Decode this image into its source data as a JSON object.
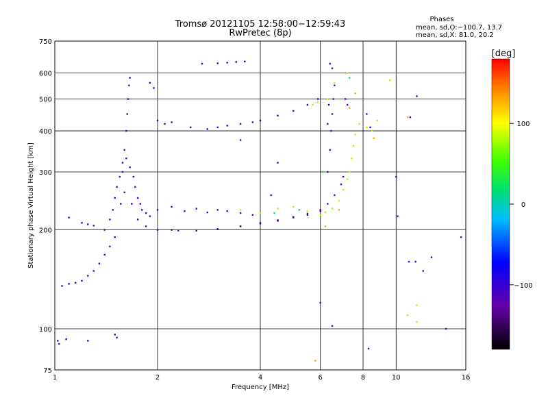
{
  "chart_data": {
    "type": "scatter",
    "title": "Tromsø 20121105 12:58:00−12:59:43",
    "subtitle": "RwPretec (8p)",
    "xlabel": "Frequency [MHz]",
    "ylabel": "Stationary phase Virtual Height [km]",
    "x_scale": "log",
    "y_scale": "log",
    "xlim": [
      1,
      16
    ],
    "ylim": [
      75,
      750
    ],
    "x_ticks": [
      1,
      2,
      4,
      6,
      8,
      10,
      16
    ],
    "x_tick_labels": [
      "1",
      "2",
      "4",
      "6",
      "8",
      "10",
      "16"
    ],
    "y_ticks": [
      75,
      100,
      200,
      300,
      400,
      500,
      600,
      750
    ],
    "y_tick_labels": [
      "75",
      "100",
      "200",
      "300",
      "400",
      "500",
      "600",
      "750"
    ],
    "grid": true,
    "phase_stats": {
      "heading": "Phases",
      "line_o": "mean, sd,O:−100.7, 13.7",
      "line_x": "mean, sd,X:  81.0, 20.2"
    },
    "colorbar": {
      "label": "[deg]",
      "range": [
        -180,
        180
      ],
      "ticks": [
        100,
        0,
        -100
      ],
      "tick_labels": [
        "100",
        "0",
        "−100"
      ]
    },
    "series": [
      {
        "color_phase_deg": -110,
        "points": [
          [
            1.02,
            92
          ],
          [
            1.03,
            90
          ],
          [
            1.08,
            93
          ],
          [
            1.25,
            92
          ],
          [
            1.5,
            96
          ],
          [
            1.52,
            94
          ],
          [
            1.05,
            135
          ],
          [
            1.1,
            137
          ],
          [
            1.15,
            138
          ],
          [
            1.2,
            140
          ],
          [
            1.25,
            145
          ],
          [
            1.3,
            150
          ],
          [
            1.35,
            158
          ],
          [
            1.4,
            168
          ],
          [
            1.45,
            178
          ],
          [
            1.5,
            190
          ],
          [
            1.4,
            200
          ],
          [
            1.45,
            215
          ],
          [
            1.48,
            230
          ],
          [
            1.5,
            250
          ],
          [
            1.52,
            270
          ],
          [
            1.55,
            290
          ],
          [
            1.58,
            320
          ],
          [
            1.6,
            350
          ],
          [
            1.62,
            400
          ],
          [
            1.63,
            450
          ],
          [
            1.64,
            500
          ],
          [
            1.65,
            550
          ],
          [
            1.66,
            580
          ],
          [
            1.56,
            240
          ],
          [
            1.6,
            260
          ],
          [
            1.58,
            300
          ],
          [
            1.62,
            330
          ],
          [
            1.66,
            310
          ],
          [
            1.7,
            290
          ],
          [
            1.72,
            270
          ],
          [
            1.75,
            250
          ],
          [
            1.78,
            240
          ],
          [
            1.8,
            230
          ],
          [
            1.85,
            225
          ],
          [
            1.9,
            220
          ],
          [
            1.1,
            218
          ],
          [
            1.2,
            210
          ],
          [
            1.25,
            208
          ],
          [
            1.3,
            206
          ],
          [
            1.68,
            240
          ],
          [
            1.75,
            215
          ],
          [
            1.85,
            205
          ],
          [
            2.0,
            200
          ],
          [
            2.3,
            199
          ],
          [
            2.6,
            199
          ],
          [
            3.0,
            201
          ],
          [
            3.5,
            205
          ],
          [
            4.0,
            210
          ],
          [
            4.5,
            214
          ],
          [
            5.0,
            219
          ],
          [
            5.5,
            224
          ],
          [
            6.0,
            230
          ],
          [
            6.3,
            240
          ],
          [
            6.6,
            255
          ],
          [
            6.9,
            275
          ],
          [
            7.0,
            290
          ],
          [
            2.0,
            230
          ],
          [
            2.2,
            235
          ],
          [
            2.4,
            228
          ],
          [
            2.6,
            232
          ],
          [
            2.8,
            226
          ],
          [
            3.0,
            230
          ],
          [
            3.2,
            228
          ],
          [
            3.5,
            225
          ],
          [
            3.8,
            222
          ],
          [
            1.9,
            560
          ],
          [
            1.95,
            540
          ],
          [
            2.0,
            430
          ],
          [
            2.1,
            420
          ],
          [
            2.2,
            425
          ],
          [
            2.5,
            410
          ],
          [
            2.8,
            405
          ],
          [
            3.0,
            410
          ],
          [
            3.2,
            415
          ],
          [
            3.5,
            420
          ],
          [
            3.8,
            425
          ],
          [
            4.0,
            430
          ],
          [
            4.5,
            445
          ],
          [
            5.0,
            460
          ],
          [
            5.5,
            480
          ],
          [
            5.9,
            500
          ],
          [
            2.7,
            640
          ],
          [
            3.0,
            642
          ],
          [
            3.2,
            645
          ],
          [
            3.4,
            648
          ],
          [
            3.6,
            650
          ],
          [
            6.3,
            300
          ],
          [
            6.4,
            350
          ],
          [
            6.45,
            400
          ],
          [
            6.5,
            450
          ],
          [
            6.55,
            500
          ],
          [
            6.6,
            550
          ],
          [
            6.5,
            620
          ],
          [
            6.4,
            640
          ],
          [
            6.3,
            420
          ],
          [
            6.35,
            480
          ],
          [
            7.1,
            500
          ],
          [
            7.2,
            480
          ],
          [
            8.2,
            450
          ],
          [
            8.4,
            410
          ],
          [
            6.0,
            120
          ],
          [
            6.5,
            102
          ],
          [
            8.3,
            87
          ],
          [
            10.0,
            290
          ],
          [
            10.1,
            220
          ],
          [
            10.9,
            160
          ],
          [
            11.4,
            160
          ],
          [
            12.0,
            150
          ],
          [
            12.7,
            165
          ],
          [
            14.0,
            100
          ],
          [
            15.5,
            190
          ],
          [
            11.0,
            440
          ],
          [
            11.5,
            510
          ],
          [
            3.5,
            375
          ],
          [
            4.5,
            320
          ],
          [
            4.3,
            255
          ]
        ]
      },
      {
        "color_phase_deg": -140,
        "points": [
          [
            2.2,
            200
          ],
          [
            2.6,
            199
          ],
          [
            3.0,
            201
          ],
          [
            3.5,
            205
          ],
          [
            4.0,
            209
          ],
          [
            4.5,
            213
          ],
          [
            5.0,
            218
          ],
          [
            5.5,
            222
          ],
          [
            6.0,
            228
          ]
        ]
      },
      {
        "color_phase_deg": 80,
        "points": [
          [
            3.5,
            230
          ],
          [
            4.0,
            225
          ],
          [
            4.5,
            232
          ],
          [
            5.0,
            235
          ],
          [
            5.5,
            228
          ],
          [
            6.0,
            222
          ],
          [
            6.2,
            226
          ],
          [
            6.5,
            232
          ],
          [
            6.8,
            245
          ],
          [
            7.0,
            265
          ],
          [
            7.2,
            285
          ],
          [
            7.3,
            300
          ],
          [
            7.4,
            330
          ],
          [
            7.5,
            360
          ],
          [
            7.6,
            390
          ],
          [
            7.8,
            420
          ],
          [
            8.2,
            410
          ],
          [
            8.5,
            400
          ],
          [
            8.8,
            430
          ],
          [
            5.7,
            480
          ],
          [
            5.9,
            490
          ],
          [
            6.3,
            500
          ],
          [
            6.6,
            560
          ],
          [
            7.2,
            600
          ],
          [
            9.6,
            570
          ],
          [
            10.8,
            110
          ],
          [
            11.5,
            105
          ],
          [
            11.5,
            118
          ]
        ]
      },
      {
        "color_phase_deg": 130,
        "points": [
          [
            6.2,
            205
          ],
          [
            6.8,
            230
          ],
          [
            7.6,
            520
          ],
          [
            8.6,
            380
          ],
          [
            10.8,
            440
          ],
          [
            5.8,
            80
          ],
          [
            7.3,
            470
          ]
        ]
      },
      {
        "color_phase_deg": 20,
        "points": [
          [
            4.4,
            225
          ],
          [
            5.2,
            230
          ],
          [
            6.1,
            300
          ],
          [
            7.3,
            580
          ]
        ]
      }
    ]
  }
}
